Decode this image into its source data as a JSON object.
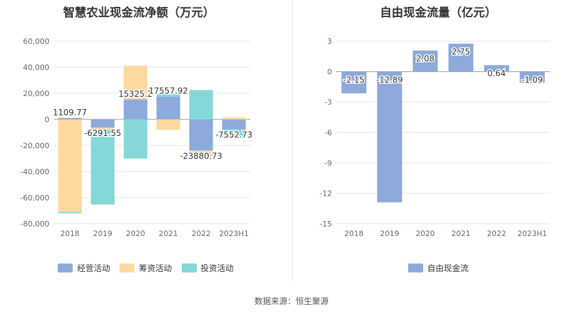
{
  "source": "数据来源：恒生聚源",
  "chart_data": [
    {
      "type": "bar",
      "stacked": true,
      "title": "智慧农业现金流净额（万元）",
      "categories": [
        "2018",
        "2019",
        "2020",
        "2021",
        "2022",
        "2023H1"
      ],
      "ylim": [
        -80000,
        60000
      ],
      "yticks": [
        60000,
        40000,
        20000,
        0,
        -20000,
        -40000,
        -60000,
        -80000
      ],
      "ytick_labels": [
        "60,000",
        "40,000",
        "20,000",
        "0",
        "-20,000",
        "-40,000",
        "-60,000",
        "-80,000"
      ],
      "grid": true,
      "legend_position": "bottom",
      "series": [
        {
          "name": "经营活动",
          "color": "#8eaadb",
          "values": [
            1109.77,
            -6291.55,
            15325.2,
            17557.92,
            -23880.73,
            -7552.73
          ]
        },
        {
          "name": "筹资活动",
          "color": "#fdd9a0",
          "values": [
            -71000,
            -2000,
            26000,
            -8000,
            -4500,
            1500
          ]
        },
        {
          "name": "投资活动",
          "color": "#86d8d8",
          "values": [
            -1000,
            -57000,
            -30000,
            2000,
            22500,
            -6500
          ]
        }
      ],
      "data_labels": [
        "1109.77",
        "-6291.55",
        "15325.2",
        "17557.92",
        "-23880.73",
        "-7552.73"
      ]
    },
    {
      "type": "bar",
      "title": "自由现金流量（亿元）",
      "categories": [
        "2018",
        "2019",
        "2020",
        "2021",
        "2022",
        "2023H1"
      ],
      "ylim": [
        -15,
        3
      ],
      "yticks": [
        3,
        0,
        -3,
        -6,
        -9,
        -12,
        -15
      ],
      "ytick_labels": [
        "3",
        "0",
        "-3",
        "-6",
        "-9",
        "-12",
        "-15"
      ],
      "grid": true,
      "legend_position": "bottom",
      "series": [
        {
          "name": "自由现金流",
          "color": "#8eaadb",
          "values": [
            -2.15,
            -12.89,
            2.08,
            2.75,
            0.64,
            -1.09
          ]
        }
      ],
      "data_labels": [
        "-2.15",
        "-12.89",
        "2.08",
        "2.75",
        "0.64",
        "-1.09"
      ]
    }
  ]
}
